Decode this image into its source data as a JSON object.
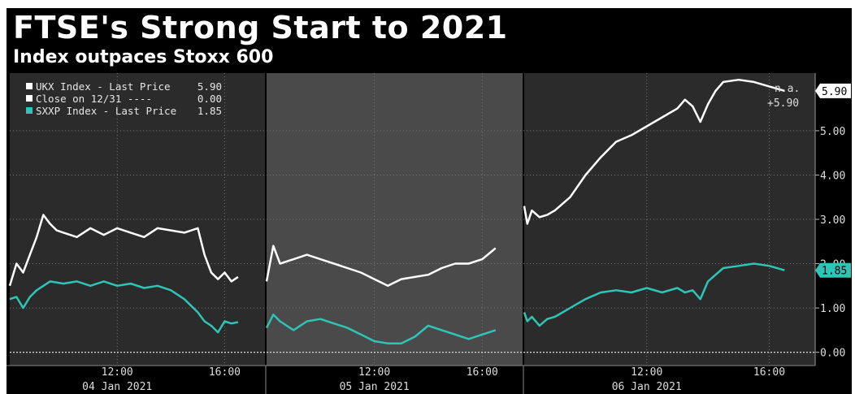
{
  "title": "FTSE's Strong Start to 2021",
  "subtitle": "Index outpaces Stoxx 600",
  "legend": [
    {
      "label": "UKX Index - Last Price",
      "value": "5.90",
      "color": "#ffffff"
    },
    {
      "label": "Close on 12/31 ----",
      "value": "0.00",
      "color": "#ffffff"
    },
    {
      "label": "SXXP Index - Last Price",
      "value": "1.85",
      "color": "#2ec4b6"
    }
  ],
  "annotations": {
    "na": "n.a.",
    "ukx_last": "+5.90"
  },
  "chart_data": {
    "type": "line",
    "ylim": [
      -0.3,
      6.3
    ],
    "y_ticks": [
      "0.00",
      "1.00",
      "2.00",
      "3.00",
      "4.00",
      "5.00"
    ],
    "grid": true,
    "legend_position": "top-left",
    "days": [
      {
        "label": "04 Jan 2021",
        "ticks": [
          "12:00",
          "16:00"
        ]
      },
      {
        "label": "05 Jan 2021",
        "ticks": [
          "12:00",
          "16:00"
        ]
      },
      {
        "label": "06 Jan 2021",
        "ticks": [
          "12:00",
          "16:00"
        ]
      }
    ],
    "end_labels": [
      {
        "series": "UKX Index - Last Price",
        "text": "5.90",
        "color": "#ffffff"
      },
      {
        "series": "SXXP Index - Last Price",
        "text": "1.85",
        "color": "#2ec4b6"
      }
    ],
    "baseline": 0.0,
    "series": [
      {
        "name": "UKX Index - Last Price",
        "color": "#ffffff",
        "days": [
          {
            "t": [
              8,
              8.25,
              8.5,
              8.75,
              9,
              9.25,
              9.5,
              9.75,
              10,
              10.5,
              11,
              11.5,
              12,
              12.5,
              13,
              13.5,
              14,
              14.5,
              15,
              15.25,
              15.5,
              15.75,
              16,
              16.25,
              16.5
            ],
            "v": [
              1.5,
              2.0,
              1.8,
              2.2,
              2.6,
              3.1,
              2.9,
              2.75,
              2.7,
              2.6,
              2.8,
              2.65,
              2.8,
              2.7,
              2.6,
              2.8,
              2.75,
              2.7,
              2.8,
              2.2,
              1.8,
              1.65,
              1.8,
              1.6,
              1.7
            ]
          },
          {
            "t": [
              8,
              8.25,
              8.5,
              9,
              9.5,
              10,
              10.5,
              11,
              11.5,
              12,
              12.5,
              13,
              13.5,
              14,
              14.5,
              15,
              15.5,
              16,
              16.5
            ],
            "v": [
              1.6,
              2.4,
              2.0,
              2.1,
              2.2,
              2.1,
              2.0,
              1.9,
              1.8,
              1.65,
              1.5,
              1.65,
              1.7,
              1.75,
              1.9,
              2.0,
              2.0,
              2.1,
              2.35
            ]
          },
          {
            "t": [
              8,
              8.1,
              8.25,
              8.5,
              8.75,
              9,
              9.5,
              10,
              10.5,
              11,
              11.5,
              12,
              12.5,
              13,
              13.25,
              13.5,
              13.75,
              14,
              14.25,
              14.5,
              15,
              15.5,
              16,
              16.5
            ],
            "v": [
              3.3,
              2.9,
              3.2,
              3.05,
              3.1,
              3.2,
              3.5,
              4.0,
              4.4,
              4.75,
              4.9,
              5.1,
              5.3,
              5.5,
              5.7,
              5.55,
              5.2,
              5.6,
              5.9,
              6.1,
              6.15,
              6.1,
              6.0,
              5.9
            ]
          }
        ]
      },
      {
        "name": "SXXP Index - Last Price",
        "color": "#2ec4b6",
        "days": [
          {
            "t": [
              8,
              8.25,
              8.5,
              8.75,
              9,
              9.5,
              10,
              10.5,
              11,
              11.5,
              12,
              12.5,
              13,
              13.5,
              14,
              14.5,
              15,
              15.25,
              15.5,
              15.75,
              16,
              16.25,
              16.5
            ],
            "v": [
              1.2,
              1.25,
              1.0,
              1.25,
              1.4,
              1.6,
              1.55,
              1.6,
              1.5,
              1.6,
              1.5,
              1.55,
              1.45,
              1.5,
              1.4,
              1.2,
              0.9,
              0.7,
              0.6,
              0.45,
              0.7,
              0.65,
              0.68
            ]
          },
          {
            "t": [
              8,
              8.25,
              8.5,
              9,
              9.5,
              10,
              10.5,
              11,
              11.5,
              12,
              12.5,
              13,
              13.5,
              14,
              14.5,
              15,
              15.5,
              16,
              16.5
            ],
            "v": [
              0.55,
              0.85,
              0.7,
              0.5,
              0.7,
              0.75,
              0.65,
              0.55,
              0.4,
              0.25,
              0.2,
              0.2,
              0.35,
              0.6,
              0.5,
              0.4,
              0.3,
              0.4,
              0.5
            ]
          },
          {
            "t": [
              8,
              8.1,
              8.25,
              8.5,
              8.75,
              9,
              9.5,
              10,
              10.5,
              11,
              11.5,
              12,
              12.5,
              13,
              13.25,
              13.5,
              13.75,
              14,
              14.5,
              15,
              15.5,
              16,
              16.5
            ],
            "v": [
              0.9,
              0.7,
              0.8,
              0.6,
              0.75,
              0.8,
              1.0,
              1.2,
              1.35,
              1.4,
              1.35,
              1.45,
              1.35,
              1.45,
              1.35,
              1.4,
              1.2,
              1.6,
              1.9,
              1.95,
              2.0,
              1.95,
              1.85
            ]
          }
        ]
      }
    ]
  }
}
